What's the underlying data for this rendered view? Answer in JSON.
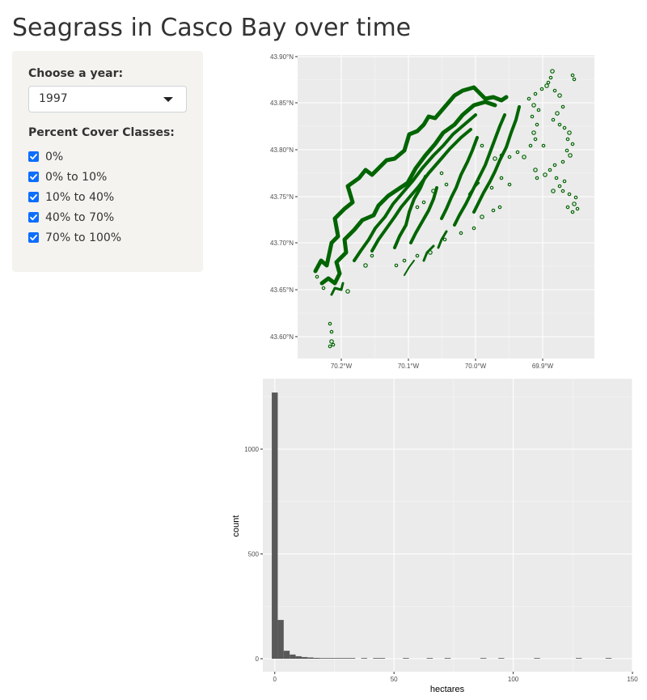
{
  "page": {
    "title": "Seagrass in Casco Bay over time"
  },
  "sidebar": {
    "year_label": "Choose a year:",
    "year_value": "1997",
    "cover_label": "Percent Cover Classes:",
    "cover_classes": [
      {
        "label": "0%",
        "checked": true
      },
      {
        "label": "0% to 10%",
        "checked": true
      },
      {
        "label": "10% to 40%",
        "checked": true
      },
      {
        "label": "40% to 70%",
        "checked": true
      },
      {
        "label": "70% to 100%",
        "checked": true
      }
    ]
  },
  "colors": {
    "seagrass": "#006400",
    "panel_bg": "#ebebeb",
    "bar_fill": "#595959",
    "checkbox": "#0d6efd"
  },
  "map": {
    "y_ticks": [
      "43.60°N",
      "43.65°N",
      "43.70°N",
      "43.75°N",
      "43.80°N",
      "43.85°N",
      "43.90°N"
    ],
    "x_ticks": [
      "70.2°W",
      "70.1°W",
      "70.0°W",
      "69.9°W"
    ]
  },
  "chart_data": {
    "type": "bar",
    "xlabel": "hectares",
    "ylabel": "count",
    "xlim": [
      -5,
      150
    ],
    "ylim": [
      0,
      1300
    ],
    "x_ticks": [
      0,
      50,
      100,
      150
    ],
    "y_ticks": [
      0,
      500,
      1000
    ],
    "bin_width": 2.5,
    "bins": [
      {
        "x": 0,
        "count": 1270
      },
      {
        "x": 2.5,
        "count": 185
      },
      {
        "x": 5,
        "count": 38
      },
      {
        "x": 7.5,
        "count": 20
      },
      {
        "x": 10,
        "count": 12
      },
      {
        "x": 12.5,
        "count": 8
      },
      {
        "x": 15,
        "count": 6
      },
      {
        "x": 17.5,
        "count": 4
      },
      {
        "x": 20,
        "count": 3
      },
      {
        "x": 22.5,
        "count": 3
      },
      {
        "x": 25,
        "count": 2
      },
      {
        "x": 27.5,
        "count": 2
      },
      {
        "x": 30,
        "count": 2
      },
      {
        "x": 32.5,
        "count": 1
      },
      {
        "x": 37.5,
        "count": 1
      },
      {
        "x": 42.5,
        "count": 1
      },
      {
        "x": 45,
        "count": 1
      },
      {
        "x": 55,
        "count": 1
      },
      {
        "x": 65,
        "count": 1
      },
      {
        "x": 72.5,
        "count": 1
      },
      {
        "x": 87.5,
        "count": 1
      },
      {
        "x": 95,
        "count": 1
      },
      {
        "x": 110,
        "count": 1
      },
      {
        "x": 127.5,
        "count": 1
      },
      {
        "x": 140,
        "count": 1
      }
    ]
  }
}
